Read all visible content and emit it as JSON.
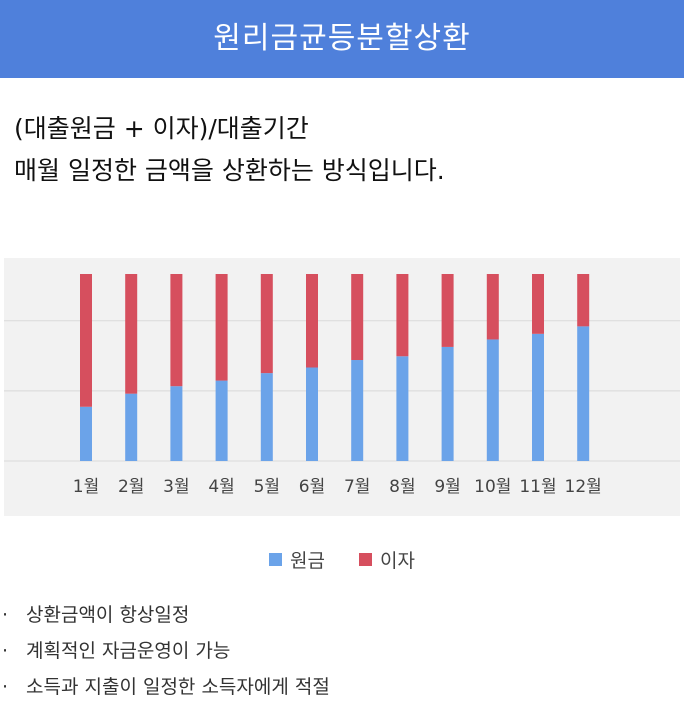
{
  "header": {
    "title": "원리금균등분할상환"
  },
  "description": {
    "formula": "(대출원금 + 이자)/대출기간",
    "explanation": "매월 일정한 금액을 상환하는 방식입니다."
  },
  "chart_data": {
    "type": "bar",
    "stacked": true,
    "categories": [
      "1월",
      "2월",
      "3월",
      "4월",
      "5월",
      "6월",
      "7월",
      "8월",
      "9월",
      "10월",
      "11월",
      "12월"
    ],
    "series": [
      {
        "name": "원금",
        "color": "#6ba3e9",
        "values": [
          29,
          36,
          40,
          43,
          47,
          50,
          54,
          56,
          61,
          65,
          68,
          72
        ]
      },
      {
        "name": "이자",
        "color": "#d64f5e",
        "values": [
          71,
          64,
          60,
          57,
          53,
          50,
          46,
          44,
          39,
          35,
          32,
          28
        ]
      }
    ],
    "ylim": [
      0,
      100
    ],
    "grid": true,
    "legend_position": "bottom"
  },
  "features": {
    "bullet": "·",
    "items": [
      "상환금액이 항상일정",
      "계획적인 자금운영이 가능",
      "소득과 지출이 일정한 소득자에게 적절"
    ]
  }
}
